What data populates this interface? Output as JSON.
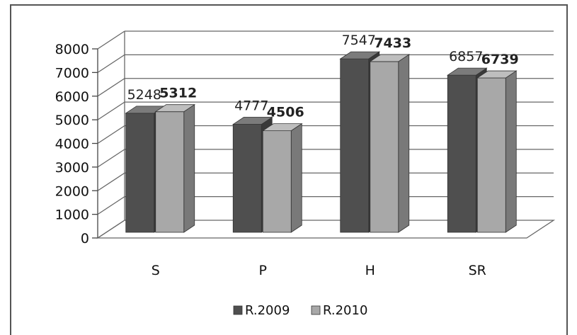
{
  "chart_data": {
    "type": "bar",
    "categories": [
      "S",
      "P",
      "H",
      "SR"
    ],
    "series": [
      {
        "name": "R.2009",
        "values": [
          5248,
          4777,
          7547,
          6857
        ],
        "color": "#4f4f4f",
        "label_weight": "normal"
      },
      {
        "name": "R.2010",
        "values": [
          5312,
          4506,
          7433,
          6739
        ],
        "color": "#a8a8a8",
        "label_weight": "bold"
      }
    ],
    "ylim": [
      0,
      8000
    ],
    "yticks": [
      "0",
      "1000",
      "2000",
      "3000",
      "4000",
      "5000",
      "6000",
      "7000",
      "8000"
    ],
    "grid": true,
    "legend_position": "bottom",
    "style": "3d-column",
    "title": "",
    "xlabel": "",
    "ylabel": ""
  }
}
